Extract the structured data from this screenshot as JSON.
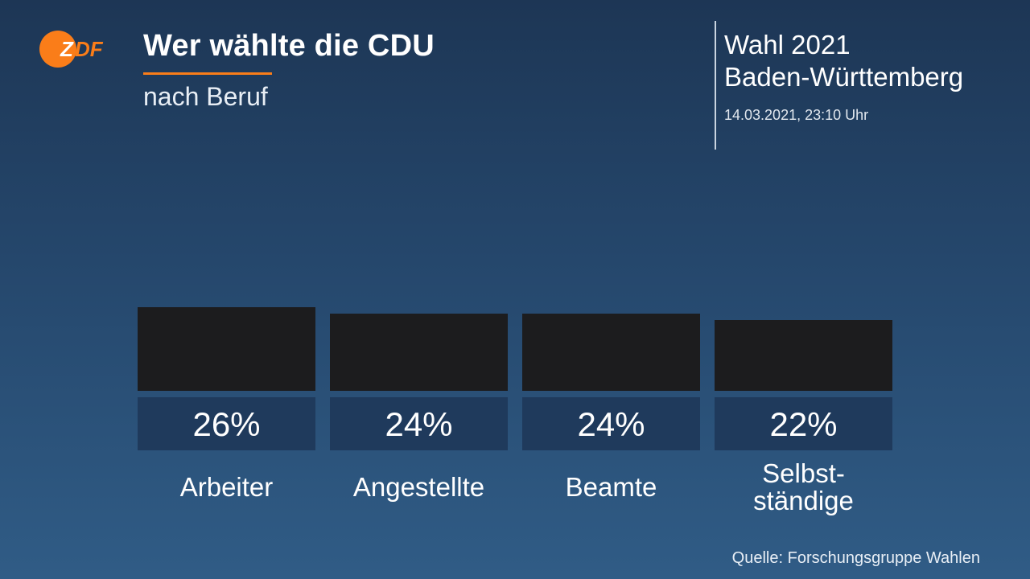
{
  "header": {
    "title": "Wer wählte die CDU",
    "subtitle": "nach Beruf",
    "election_name": "Wahl 2021",
    "region": "Baden-Württemberg",
    "timestamp": "14.03.2021, 23:10 Uhr"
  },
  "logo": {
    "text": "ZDF",
    "color": "#fa7d19"
  },
  "accent_color": "#fa7d19",
  "footer": {
    "source": "Quelle: Forschungsgruppe Wahlen"
  },
  "chart_data": {
    "type": "bar",
    "categories": [
      [
        "Arbeiter"
      ],
      [
        "Angestellte"
      ],
      [
        "Beamte"
      ],
      [
        "Selbst-",
        "ständige"
      ]
    ],
    "values": [
      26,
      24,
      24,
      22
    ],
    "value_labels": [
      "26%",
      "24%",
      "24%",
      "22%"
    ],
    "title": "Wer wählte die CDU",
    "subtitle": "nach Beruf",
    "bar_color": "#1c1c1e",
    "label_box_color": "#1f3a5c",
    "grid": false,
    "legend": "none"
  }
}
